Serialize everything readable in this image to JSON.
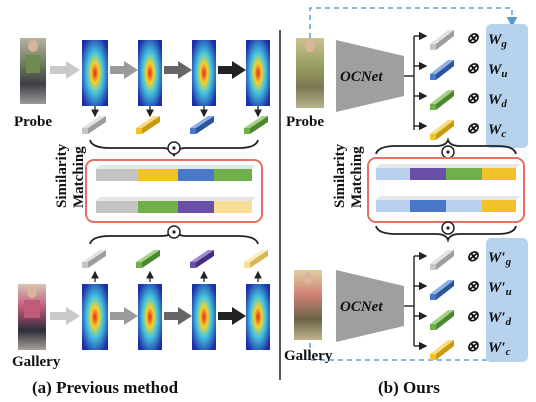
{
  "left": {
    "caption": "(a) Previous method",
    "probe_label": "Probe",
    "gallery_label": "Gallery",
    "matching_label": [
      "Similarity",
      "Matching"
    ]
  },
  "right": {
    "caption": "(b) Ours",
    "probe_label": "Probe",
    "gallery_label": "Gallery",
    "matching_label": [
      "Similarity",
      "Matching"
    ],
    "network_label": "OCNet",
    "probe_weights": [
      {
        "base": "W",
        "sub": "g",
        "prime": ""
      },
      {
        "base": "W",
        "sub": "u",
        "prime": ""
      },
      {
        "base": "W",
        "sub": "d",
        "prime": ""
      },
      {
        "base": "W",
        "sub": "c",
        "prime": ""
      }
    ],
    "gallery_weights": [
      {
        "base": "W",
        "sub": "g",
        "prime": "′"
      },
      {
        "base": "W",
        "sub": "u",
        "prime": "′"
      },
      {
        "base": "W",
        "sub": "d",
        "prime": "′"
      },
      {
        "base": "W",
        "sub": "c",
        "prime": "′"
      }
    ],
    "operator_symbol": "⊗"
  },
  "colors": {
    "gray": "#c4c4c4",
    "yellow": "#f2c22a",
    "blue": "#4a78c8",
    "green": "#6fb04b",
    "purple": "#6a4fa8",
    "light_yellow": "#f7df96",
    "highlight_box": "#e87060",
    "weight_panel": "#b7d2ec",
    "dashed_link": "#5b9bd5"
  }
}
